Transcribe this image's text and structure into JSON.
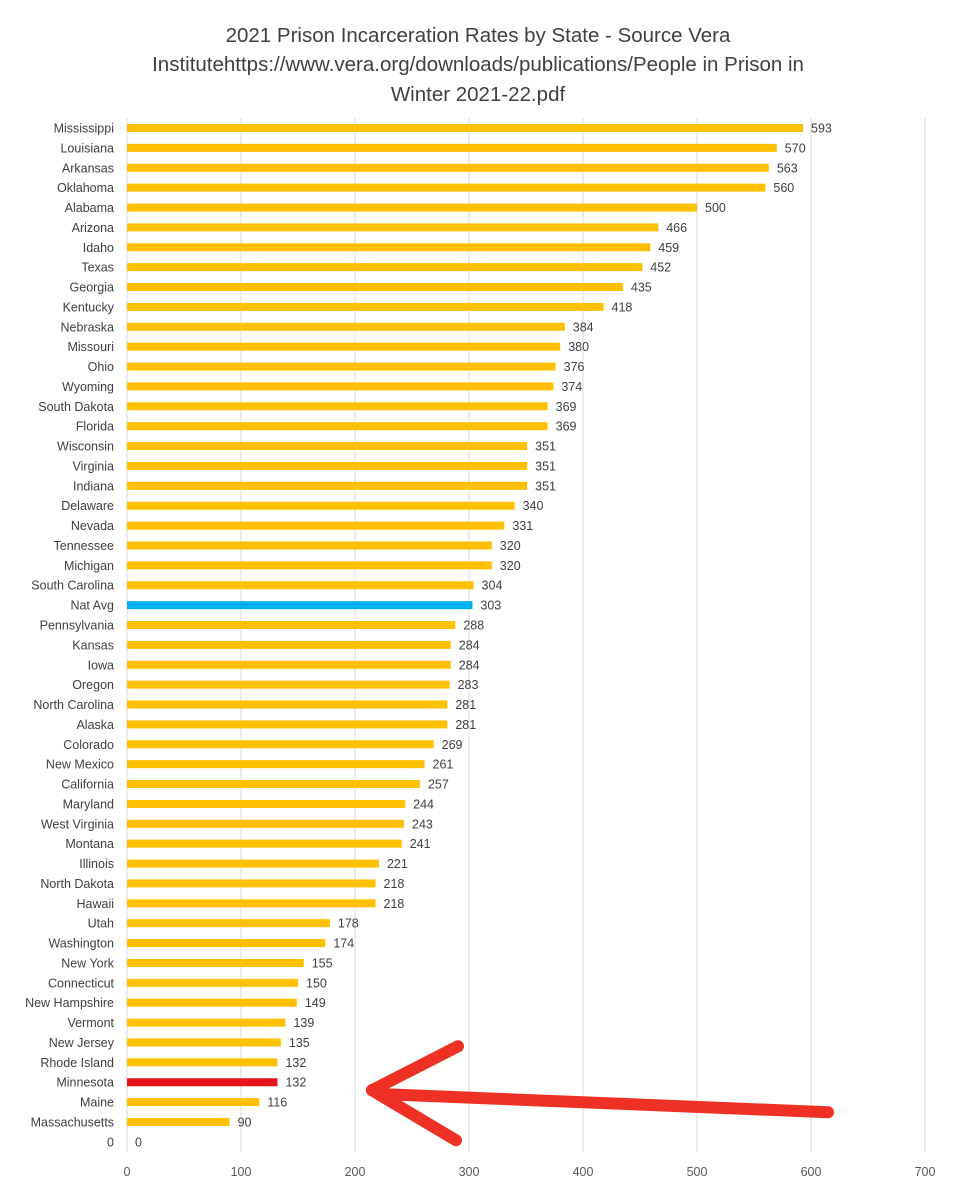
{
  "chart_data": {
    "type": "bar",
    "orientation": "horizontal",
    "title_lines": [
      "2021 Prison Incarceration Rates by State - Source Vera",
      "Institutehttps://www.vera.org/downloads/publications/People in Prison in",
      "Winter 2021-22.pdf"
    ],
    "categories": [
      "Mississippi",
      "Louisiana",
      "Arkansas",
      "Oklahoma",
      "Alabama",
      "Arizona",
      "Idaho",
      "Texas",
      "Georgia",
      "Kentucky",
      "Nebraska",
      "Missouri",
      "Ohio",
      "Wyoming",
      "South Dakota",
      "Florida",
      "Wisconsin",
      "Virginia",
      "Indiana",
      "Delaware",
      "Nevada",
      "Tennessee",
      "Michigan",
      "South Carolina",
      "Nat Avg",
      "Pennsylvania",
      "Kansas",
      "Iowa",
      "Oregon",
      "North Carolina",
      "Alaska",
      "Colorado",
      "New Mexico",
      "California",
      "Maryland",
      "West Virginia",
      "Montana",
      "Illinois",
      "North Dakota",
      "Hawaii",
      "Utah",
      "Washington",
      "New York",
      "Connecticut",
      "New Hampshire",
      "Vermont",
      "New Jersey",
      "Rhode Island",
      "Minnesota",
      "Maine",
      "Massachusetts",
      "0"
    ],
    "values": [
      593,
      570,
      563,
      560,
      500,
      466,
      459,
      452,
      435,
      418,
      384,
      380,
      376,
      374,
      369,
      369,
      351,
      351,
      351,
      340,
      331,
      320,
      320,
      304,
      303,
      288,
      284,
      284,
      283,
      281,
      281,
      269,
      261,
      257,
      244,
      243,
      241,
      221,
      218,
      218,
      178,
      174,
      155,
      150,
      149,
      139,
      135,
      132,
      132,
      116,
      90,
      0
    ],
    "xlim": [
      0,
      700
    ],
    "x_ticks": [
      0,
      100,
      200,
      300,
      400,
      500,
      600,
      700
    ],
    "grid": true,
    "colors": {
      "default_bar": "#FFC000",
      "highlight_avg": "#00B0F0",
      "highlight_state": "#E8141B",
      "arrow": "#EE3124",
      "gridline": "#D9D9D9"
    },
    "highlights": [
      {
        "category": "Nat Avg",
        "color": "#00B0F0"
      },
      {
        "category": "Minnesota",
        "color": "#E8141B"
      }
    ],
    "annotations": [
      {
        "type": "arrow",
        "points_to": "Minnesota",
        "color": "#EE3124"
      }
    ]
  }
}
